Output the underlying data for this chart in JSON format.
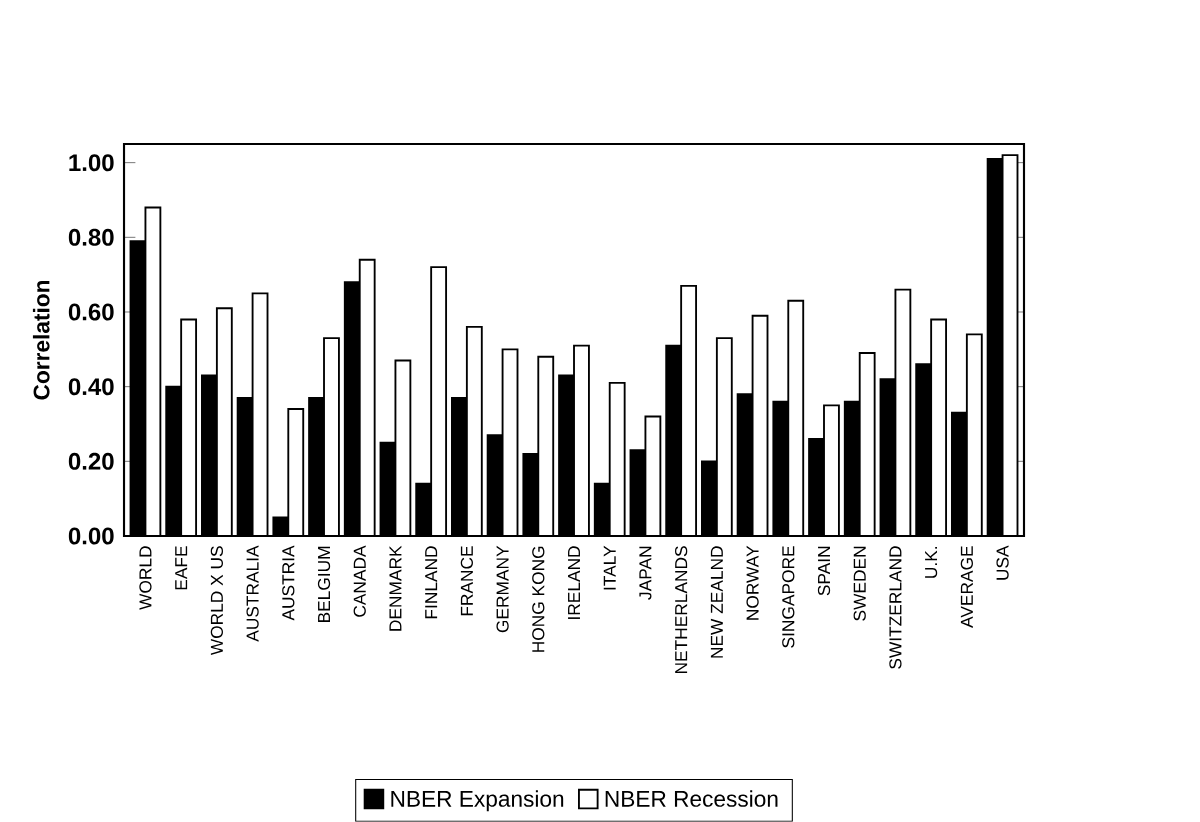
{
  "chart_data": {
    "type": "bar",
    "ylabel": "Correlation",
    "categories": [
      "WORLD",
      "EAFE",
      "WORLD X US",
      "AUSTRALIA",
      "AUSTRIA",
      "BELGIUM",
      "CANADA",
      "DENMARK",
      "FINLAND",
      "FRANCE",
      "GERMANY",
      "HONG KONG",
      "IRELAND",
      "ITALY",
      "JAPAN",
      "NETHERLANDS",
      "NEW ZEALND",
      "NORWAY",
      "SINGAPORE",
      "SPAIN",
      "SWEDEN",
      "SWITZERLAND",
      "U.K.",
      "AVERAGE",
      "USA"
    ],
    "series": [
      {
        "name": "NBER Expansion",
        "color": "#000000",
        "values": [
          0.79,
          0.4,
          0.43,
          0.37,
          0.05,
          0.37,
          0.68,
          0.25,
          0.14,
          0.37,
          0.27,
          0.22,
          0.43,
          0.14,
          0.23,
          0.51,
          0.2,
          0.38,
          0.36,
          0.26,
          0.36,
          0.42,
          0.46,
          0.33,
          1.01
        ]
      },
      {
        "name": "NBER Recession",
        "color": "#ffffff",
        "values": [
          0.88,
          0.58,
          0.61,
          0.65,
          0.34,
          0.53,
          0.74,
          0.47,
          0.72,
          0.56,
          0.5,
          0.48,
          0.51,
          0.41,
          0.32,
          0.67,
          0.53,
          0.59,
          0.63,
          0.35,
          0.49,
          0.66,
          0.58,
          0.54,
          1.02
        ]
      }
    ],
    "ylim": [
      0,
      1.05
    ],
    "yticks": [
      {
        "value": 0,
        "label": "0.00"
      },
      {
        "value": 0.2,
        "label": "0.20"
      },
      {
        "value": 0.4,
        "label": "0.40"
      },
      {
        "value": 0.6,
        "label": "0.60"
      },
      {
        "value": 0.8,
        "label": "0.80"
      },
      {
        "value": 1.0,
        "label": "1.00"
      }
    ],
    "legend": "bottom"
  }
}
